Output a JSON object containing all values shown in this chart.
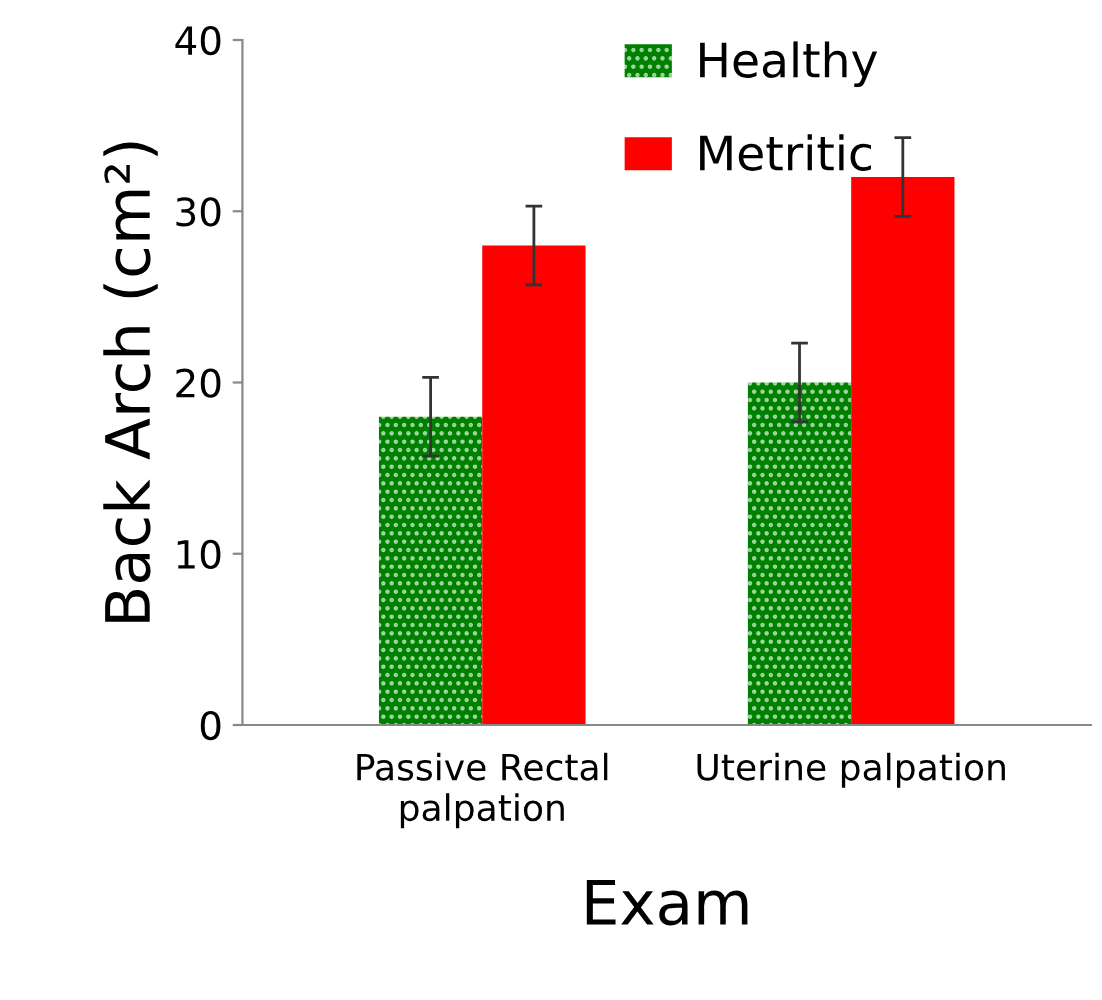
{
  "chart_data": {
    "type": "bar",
    "xlabel": "Exam",
    "ylabel": "Back Arch (cm²)",
    "categories": [
      "Passive Rectal\npalpation",
      "Uterine palpation"
    ],
    "series": [
      {
        "name": "Healthy",
        "color": "#008000",
        "values": [
          18,
          20
        ],
        "errors": [
          2.3,
          2.3
        ]
      },
      {
        "name": "Metritic",
        "color": "#ff0000",
        "values": [
          28,
          32
        ],
        "errors": [
          2.3,
          2.3
        ]
      }
    ],
    "ylim": [
      0,
      40
    ],
    "yticks": [
      0,
      10,
      20,
      30,
      40
    ],
    "grid": false,
    "legend": "top"
  }
}
